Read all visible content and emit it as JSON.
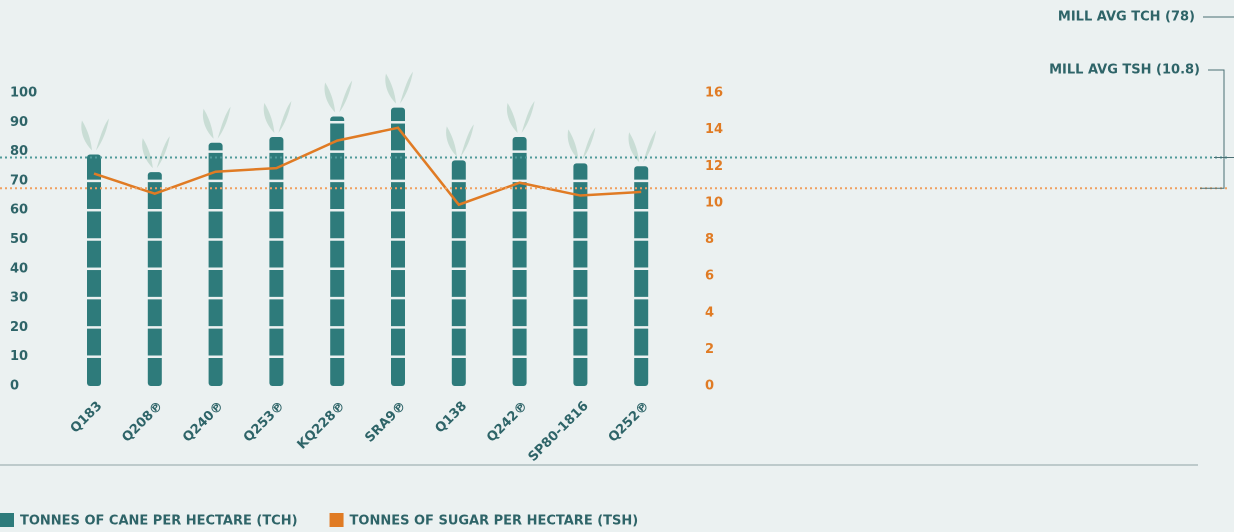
{
  "chart_data": {
    "type": "bar",
    "categories": [
      "Q183",
      "Q208℗",
      "Q240℗",
      "Q253℗",
      "KQ228℗",
      "SRA9℗",
      "Q138",
      "Q242℗",
      "SP80-1816",
      "Q252℗"
    ],
    "series": [
      {
        "name": "TONNES OF CANE PER HECTARE (TCH)",
        "color": "#2e7b7b",
        "type": "bar",
        "values": [
          79,
          73,
          83,
          85,
          92,
          95,
          77,
          85,
          76,
          75
        ]
      },
      {
        "name": "TONNES OF SUGAR PER HECTARE (TSH)",
        "color": "#e07b24",
        "type": "line",
        "axis": "y2",
        "values": [
          11.6,
          10.5,
          11.7,
          11.9,
          13.4,
          14.1,
          9.9,
          11.1,
          10.4,
          10.6
        ]
      }
    ],
    "ylim": [
      0,
      100
    ],
    "yticks": [
      0,
      10,
      20,
      30,
      40,
      50,
      60,
      70,
      80,
      90,
      100
    ],
    "y2lim": [
      0,
      16
    ],
    "y2ticks": [
      0,
      2,
      4,
      6,
      8,
      10,
      12,
      14,
      16
    ],
    "reference_lines": [
      {
        "label": "MILL AVG TCH (78)",
        "value": 78,
        "axis": "y",
        "color": "#4f9a9a"
      },
      {
        "label": "MILL AVG TSH (10.8)",
        "value": 10.8,
        "axis": "y2",
        "color": "#f0a060"
      }
    ],
    "legend": "bottom-left"
  }
}
